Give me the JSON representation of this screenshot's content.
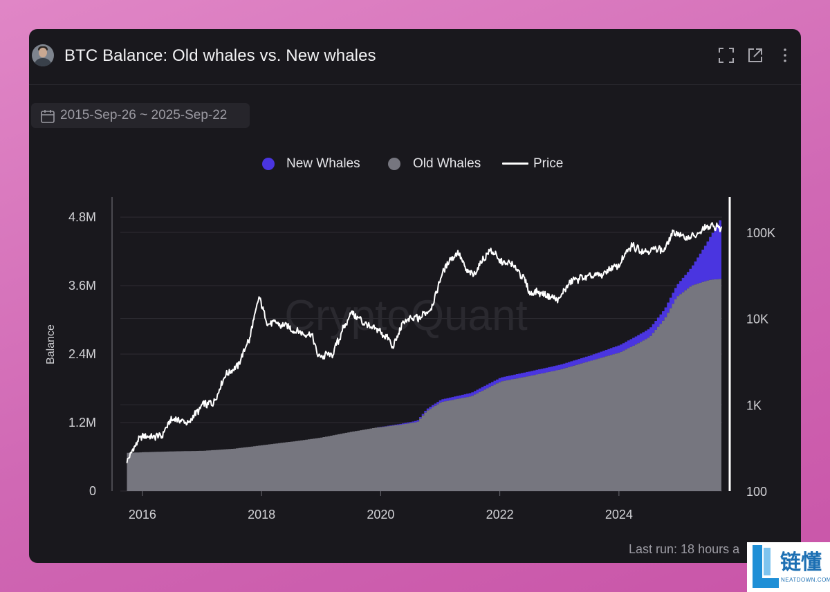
{
  "header": {
    "title": "BTC Balance: Old whales vs. New whales",
    "icons": [
      "fullscreen-icon",
      "open-external-icon",
      "more-vertical-icon"
    ]
  },
  "date_range": {
    "label": "2015-Sep-26 ~ 2025-Sep-22"
  },
  "legend": [
    {
      "label": "New Whales",
      "color": "#4a35e0",
      "shape": "circle"
    },
    {
      "label": "Old Whales",
      "color": "#76767f",
      "shape": "circle"
    },
    {
      "label": "Price",
      "color": "#ffffff",
      "shape": "line"
    }
  ],
  "watermark": "CryptoQuant",
  "footer": {
    "last_run": "Last run: 18 hours a"
  },
  "badge": {
    "brand": "链懂",
    "sub": "NEATDOWN.COM"
  },
  "colors": {
    "background": "#19181d",
    "new_whales": "#4a35e0",
    "old_whales": "#76767f",
    "price": "#ffffff",
    "grid": "#2e2d33",
    "axis_text": "#d2d2d6"
  },
  "chart_data": {
    "type": "area",
    "x_unit": "year",
    "x_range": [
      2015.74,
      2025.72
    ],
    "x_ticks": [
      2016,
      2018,
      2020,
      2022,
      2024
    ],
    "x_tick_labels": [
      "2016",
      "2018",
      "2020",
      "2022",
      "2024"
    ],
    "y_left": {
      "label": "Balance",
      "range": [
        0,
        4800000
      ],
      "ticks": [
        0,
        1200000,
        2400000,
        3600000,
        4800000
      ],
      "tick_labels": [
        "0",
        "1.2M",
        "2.4M",
        "3.6M",
        "4.8M"
      ]
    },
    "y_right": {
      "scale": "log",
      "range": [
        100,
        150000
      ],
      "ticks": [
        100,
        1000,
        10000,
        100000
      ],
      "tick_labels": [
        "100",
        "1K",
        "10K",
        "100K"
      ]
    },
    "grid": true,
    "legend_position": "top-center",
    "series": [
      {
        "name": "Old Whales",
        "kind": "stacked-area",
        "axis": "left",
        "points": [
          [
            2015.74,
            670000
          ],
          [
            2016.0,
            680000
          ],
          [
            2016.5,
            695000
          ],
          [
            2017.0,
            705000
          ],
          [
            2017.5,
            740000
          ],
          [
            2017.9,
            790000
          ],
          [
            2018.2,
            830000
          ],
          [
            2018.6,
            880000
          ],
          [
            2019.0,
            940000
          ],
          [
            2019.5,
            1040000
          ],
          [
            2019.9,
            1110000
          ],
          [
            2020.3,
            1160000
          ],
          [
            2020.6,
            1210000
          ],
          [
            2020.75,
            1400000
          ],
          [
            2021.0,
            1560000
          ],
          [
            2021.5,
            1660000
          ],
          [
            2022.0,
            1920000
          ],
          [
            2022.5,
            2020000
          ],
          [
            2023.0,
            2130000
          ],
          [
            2023.5,
            2280000
          ],
          [
            2024.0,
            2430000
          ],
          [
            2024.25,
            2560000
          ],
          [
            2024.5,
            2700000
          ],
          [
            2024.75,
            3020000
          ],
          [
            2024.95,
            3400000
          ],
          [
            2025.2,
            3600000
          ],
          [
            2025.5,
            3700000
          ],
          [
            2025.72,
            3720000
          ]
        ]
      },
      {
        "name": "New Whales",
        "kind": "stacked-area",
        "axis": "left",
        "points": [
          [
            2015.74,
            0
          ],
          [
            2019.9,
            0
          ],
          [
            2020.0,
            5000
          ],
          [
            2020.5,
            20000
          ],
          [
            2020.9,
            40000
          ],
          [
            2021.5,
            60000
          ],
          [
            2022.0,
            70000
          ],
          [
            2022.5,
            80000
          ],
          [
            2023.0,
            85000
          ],
          [
            2023.5,
            95000
          ],
          [
            2024.0,
            130000
          ],
          [
            2024.5,
            150000
          ],
          [
            2024.75,
            170000
          ],
          [
            2024.95,
            200000
          ],
          [
            2025.2,
            320000
          ],
          [
            2025.45,
            650000
          ],
          [
            2025.62,
            930000
          ],
          [
            2025.72,
            1100000
          ]
        ]
      },
      {
        "name": "Price",
        "kind": "line",
        "axis": "right",
        "points": [
          [
            2015.74,
            235
          ],
          [
            2015.85,
            320
          ],
          [
            2016.0,
            430
          ],
          [
            2016.3,
            420
          ],
          [
            2016.5,
            670
          ],
          [
            2016.8,
            640
          ],
          [
            2017.0,
            990
          ],
          [
            2017.2,
            1100
          ],
          [
            2017.4,
            2200
          ],
          [
            2017.6,
            2900
          ],
          [
            2017.8,
            5800
          ],
          [
            2017.96,
            17500
          ],
          [
            2018.1,
            9000
          ],
          [
            2018.3,
            8500
          ],
          [
            2018.6,
            7000
          ],
          [
            2018.85,
            6300
          ],
          [
            2018.95,
            3500
          ],
          [
            2019.2,
            3900
          ],
          [
            2019.4,
            8500
          ],
          [
            2019.5,
            11500
          ],
          [
            2019.8,
            8000
          ],
          [
            2020.0,
            7200
          ],
          [
            2020.2,
            4800
          ],
          [
            2020.4,
            9000
          ],
          [
            2020.7,
            10800
          ],
          [
            2020.85,
            13500
          ],
          [
            2021.0,
            29000
          ],
          [
            2021.15,
            47000
          ],
          [
            2021.3,
            58000
          ],
          [
            2021.45,
            36000
          ],
          [
            2021.55,
            33000
          ],
          [
            2021.7,
            47000
          ],
          [
            2021.85,
            64000
          ],
          [
            2022.0,
            46000
          ],
          [
            2022.2,
            43000
          ],
          [
            2022.4,
            30000
          ],
          [
            2022.5,
            20000
          ],
          [
            2022.7,
            19500
          ],
          [
            2022.9,
            16800
          ],
          [
            2023.0,
            17000
          ],
          [
            2023.2,
            28000
          ],
          [
            2023.5,
            30000
          ],
          [
            2023.8,
            34000
          ],
          [
            2024.0,
            42000
          ],
          [
            2024.2,
            70000
          ],
          [
            2024.5,
            60000
          ],
          [
            2024.75,
            64000
          ],
          [
            2024.9,
            95000
          ],
          [
            2025.0,
            98000
          ],
          [
            2025.2,
            84000
          ],
          [
            2025.4,
            105000
          ],
          [
            2025.55,
            117000
          ],
          [
            2025.72,
            113000
          ]
        ]
      }
    ]
  }
}
